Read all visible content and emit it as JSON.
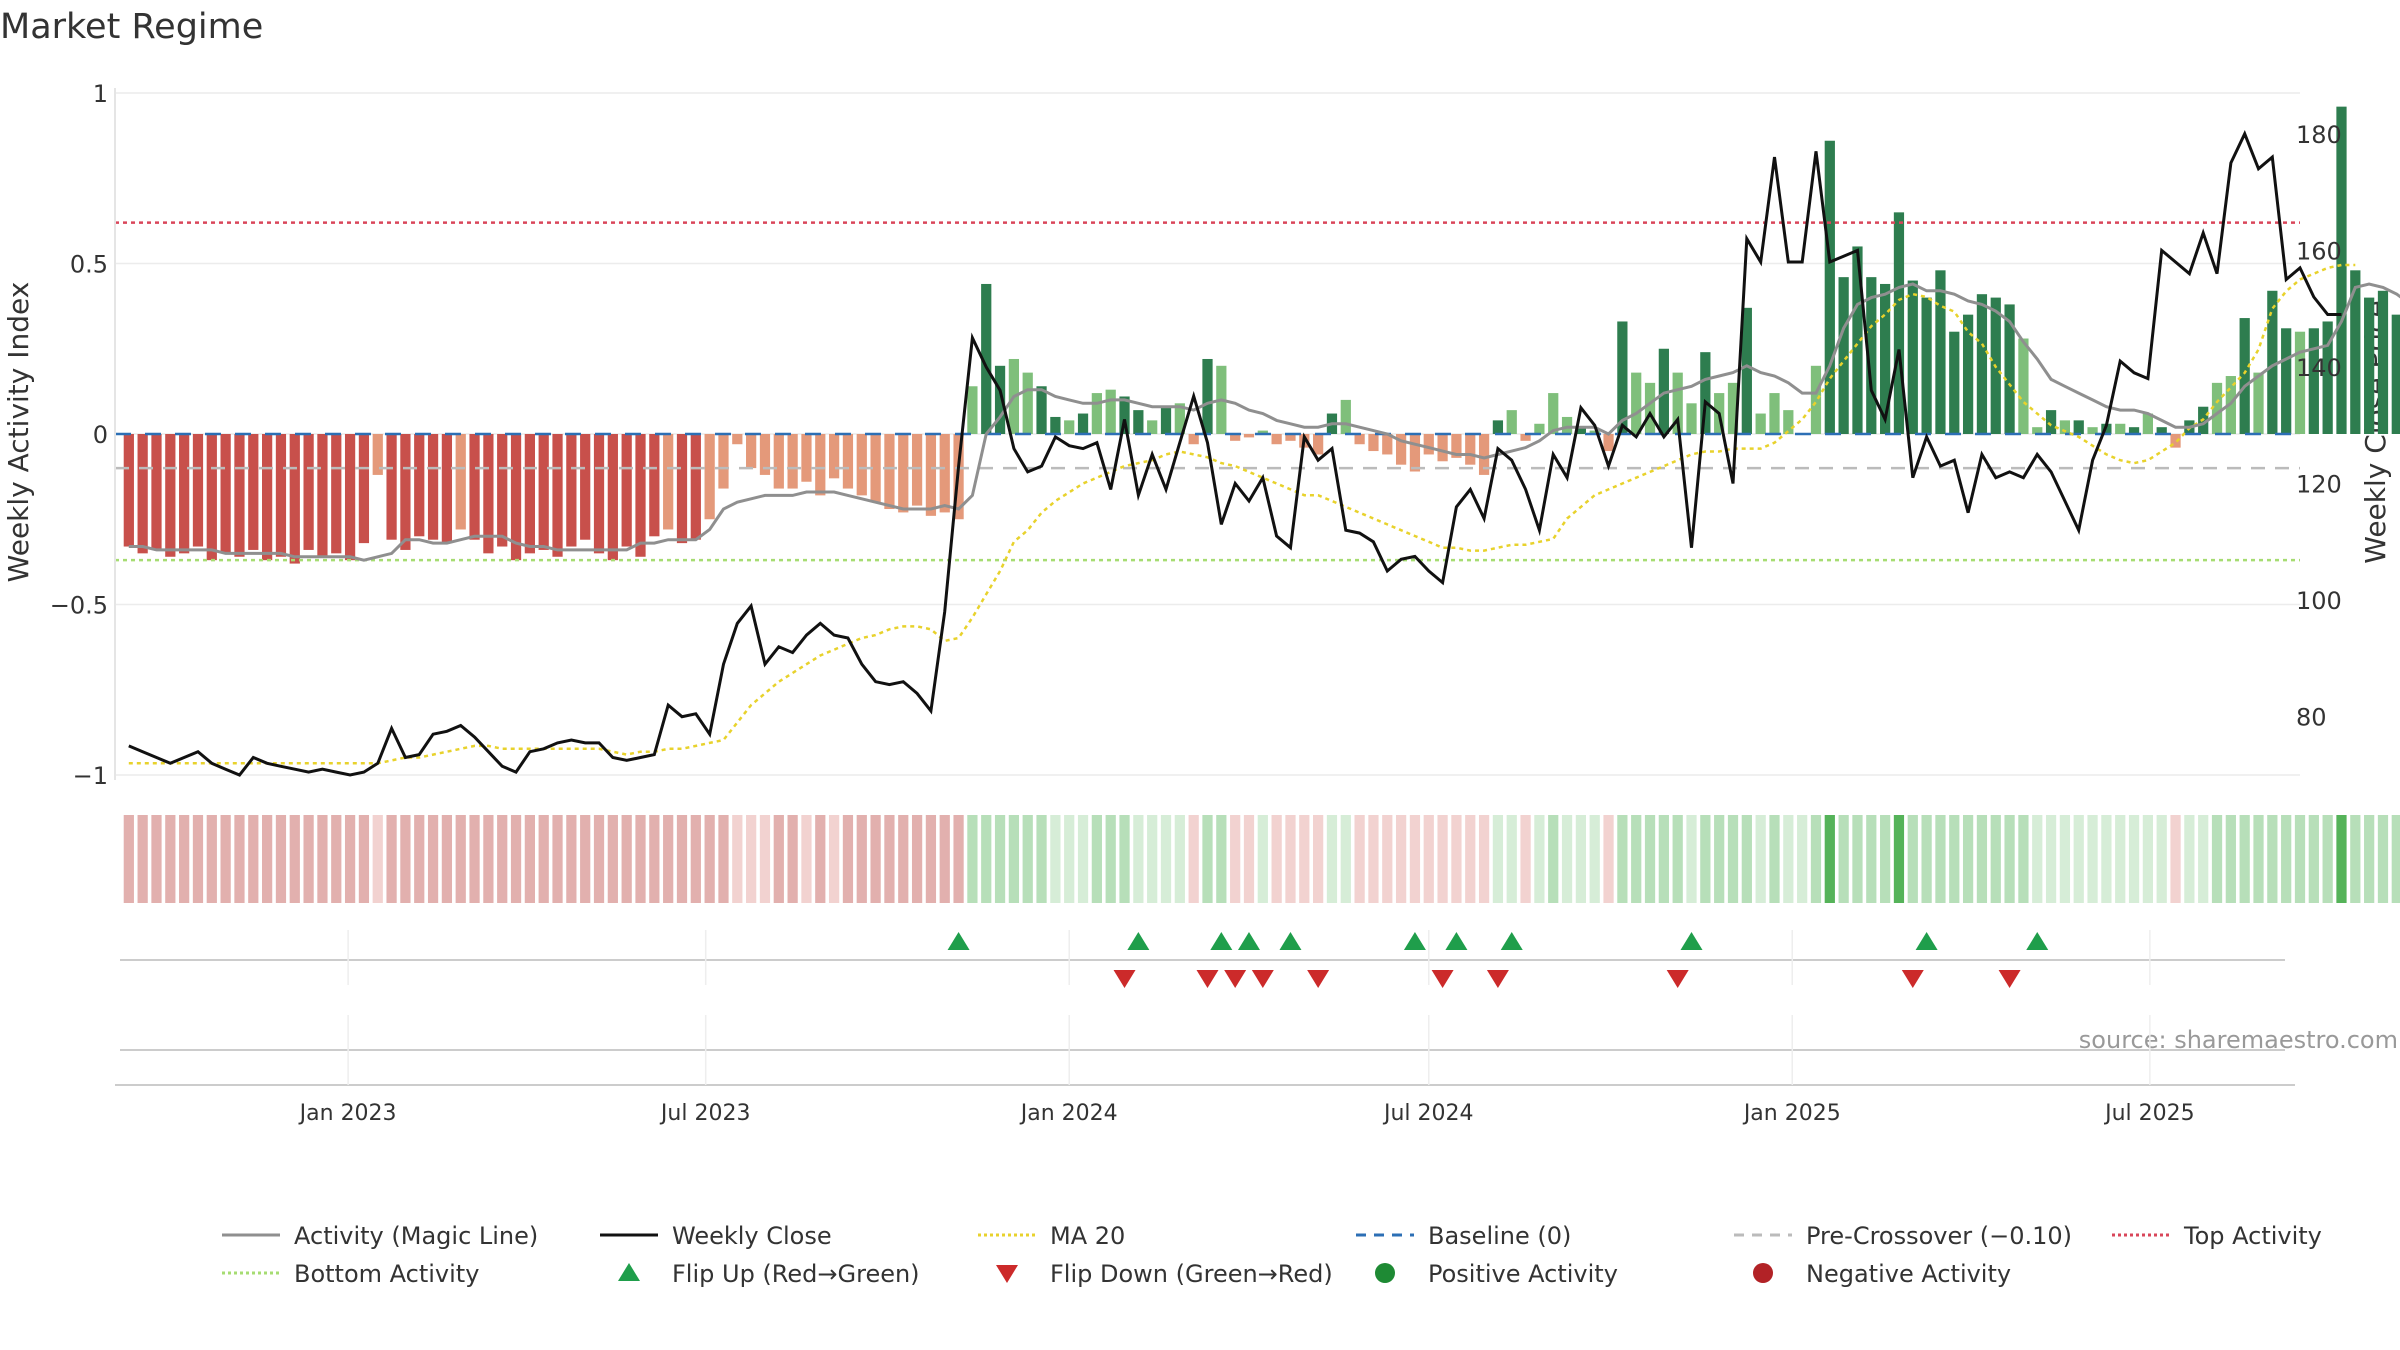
{
  "chart_data": {
    "type": "bar",
    "title": "Market Regime",
    "ylabel": "Weekly Activity Index",
    "y2label": "Weekly Close Price",
    "ylim": [
      -1.0,
      1.0
    ],
    "y2lim": [
      70,
      187
    ],
    "yticks": [
      "1",
      "0.5",
      "0",
      "−0.5",
      "−1"
    ],
    "y2ticks": [
      "180",
      "160",
      "140",
      "120",
      "100",
      "80"
    ],
    "x_range": [
      "2022-09-05",
      "2025-09-15"
    ],
    "x_ticks": [
      {
        "label": "Jan 2023",
        "date": "2023-01-01"
      },
      {
        "label": "Jul 2023",
        "date": "2023-07-01"
      },
      {
        "label": "Jan 2024",
        "date": "2024-01-01"
      },
      {
        "label": "Jul 2024",
        "date": "2024-07-01"
      },
      {
        "label": "Jan 2025",
        "date": "2025-01-01"
      },
      {
        "label": "Jul 2025",
        "date": "2025-07-01"
      }
    ],
    "grid": true,
    "legend_position": "bottom",
    "source": "source: sharemaestro.com",
    "first_week": "2022-09-12",
    "activity": [
      -0.33,
      -0.35,
      -0.34,
      -0.36,
      -0.35,
      -0.33,
      -0.37,
      -0.35,
      -0.36,
      -0.34,
      -0.37,
      -0.36,
      -0.38,
      -0.34,
      -0.36,
      -0.35,
      -0.37,
      -0.32,
      -0.12,
      -0.31,
      -0.34,
      -0.3,
      -0.31,
      -0.32,
      -0.28,
      -0.31,
      -0.35,
      -0.33,
      -0.37,
      -0.35,
      -0.34,
      -0.36,
      -0.33,
      -0.31,
      -0.35,
      -0.37,
      -0.33,
      -0.36,
      -0.3,
      -0.28,
      -0.32,
      -0.31,
      -0.25,
      -0.16,
      -0.03,
      -0.1,
      -0.12,
      -0.16,
      -0.16,
      -0.14,
      -0.18,
      -0.13,
      -0.16,
      -0.18,
      -0.2,
      -0.22,
      -0.23,
      -0.21,
      -0.24,
      -0.23,
      -0.25,
      0.14,
      0.44,
      0.2,
      0.22,
      0.18,
      0.14,
      0.05,
      0.04,
      0.06,
      0.12,
      0.13,
      0.11,
      0.07,
      0.04,
      0.08,
      0.09,
      -0.03,
      0.22,
      0.2,
      -0.02,
      -0.01,
      0.01,
      -0.03,
      -0.02,
      -0.04,
      -0.06,
      0.06,
      0.1,
      -0.03,
      -0.05,
      -0.06,
      -0.09,
      -0.11,
      -0.06,
      -0.08,
      -0.07,
      -0.09,
      -0.12,
      0.04,
      0.07,
      -0.02,
      0.03,
      0.12,
      0.05,
      0.02,
      0.01,
      -0.05,
      0.33,
      0.18,
      0.15,
      0.25,
      0.18,
      0.09,
      0.24,
      0.12,
      0.15,
      0.37,
      0.06,
      0.12,
      0.07,
      0.0,
      0.2,
      0.86,
      0.46,
      0.55,
      0.46,
      0.44,
      0.65,
      0.45,
      0.4,
      0.48,
      0.3,
      0.35,
      0.41,
      0.4,
      0.38,
      0.28,
      0.02,
      0.07,
      0.04,
      0.04,
      0.02,
      0.03,
      0.03,
      0.02,
      0.06,
      0.02,
      -0.04,
      0.04,
      0.08,
      0.15,
      0.17,
      0.34,
      0.18,
      0.42,
      0.31,
      0.3,
      0.31,
      0.33,
      0.96,
      0.48,
      0.4,
      0.42,
      0.35,
      0.3,
      0.26,
      0.23,
      0.23
    ],
    "magic_line": [
      -0.33,
      -0.33,
      -0.34,
      -0.34,
      -0.34,
      -0.34,
      -0.34,
      -0.35,
      -0.35,
      -0.35,
      -0.35,
      -0.35,
      -0.36,
      -0.36,
      -0.36,
      -0.36,
      -0.36,
      -0.37,
      -0.36,
      -0.35,
      -0.31,
      -0.31,
      -0.32,
      -0.32,
      -0.31,
      -0.3,
      -0.3,
      -0.3,
      -0.32,
      -0.33,
      -0.33,
      -0.34,
      -0.34,
      -0.34,
      -0.34,
      -0.34,
      -0.34,
      -0.32,
      -0.32,
      -0.31,
      -0.31,
      -0.31,
      -0.28,
      -0.22,
      -0.2,
      -0.19,
      -0.18,
      -0.18,
      -0.18,
      -0.17,
      -0.17,
      -0.17,
      -0.18,
      -0.19,
      -0.2,
      -0.21,
      -0.22,
      -0.22,
      -0.22,
      -0.21,
      -0.22,
      -0.18,
      0.0,
      0.05,
      0.11,
      0.13,
      0.13,
      0.11,
      0.1,
      0.09,
      0.09,
      0.1,
      0.1,
      0.09,
      0.08,
      0.08,
      0.08,
      0.07,
      0.09,
      0.1,
      0.09,
      0.07,
      0.06,
      0.04,
      0.03,
      0.02,
      0.02,
      0.03,
      0.03,
      0.02,
      0.01,
      0.0,
      -0.02,
      -0.03,
      -0.04,
      -0.05,
      -0.06,
      -0.06,
      -0.07,
      -0.06,
      -0.05,
      -0.04,
      -0.02,
      0.01,
      0.02,
      0.02,
      0.02,
      0.0,
      0.04,
      0.06,
      0.09,
      0.12,
      0.13,
      0.14,
      0.16,
      0.17,
      0.18,
      0.2,
      0.18,
      0.17,
      0.15,
      0.12,
      0.12,
      0.2,
      0.31,
      0.38,
      0.4,
      0.41,
      0.43,
      0.44,
      0.42,
      0.42,
      0.41,
      0.39,
      0.38,
      0.36,
      0.33,
      0.27,
      0.22,
      0.16,
      0.14,
      0.12,
      0.1,
      0.08,
      0.07,
      0.07,
      0.06,
      0.04,
      0.02,
      0.02,
      0.03,
      0.06,
      0.09,
      0.14,
      0.17,
      0.2,
      0.22,
      0.24,
      0.25,
      0.26,
      0.33,
      0.43,
      0.44,
      0.43,
      0.41,
      0.38,
      0.35,
      0.33,
      0.31
    ],
    "close": [
      75,
      74,
      73,
      72,
      73,
      74,
      72,
      71,
      70,
      73,
      72,
      71.5,
      71,
      70.5,
      71,
      70.5,
      70,
      70.5,
      72,
      78,
      73,
      73.5,
      77,
      77.5,
      78.5,
      76.5,
      74,
      71.5,
      70.5,
      74,
      74.5,
      75.5,
      76,
      75.5,
      75.5,
      73,
      72.5,
      73,
      73.5,
      82,
      80,
      80.5,
      77,
      89,
      96,
      99,
      89,
      92,
      91,
      94,
      96,
      94,
      93.5,
      89,
      86,
      85.5,
      86,
      84,
      81,
      98,
      123,
      145,
      140,
      136,
      126,
      122,
      123,
      128,
      126.5,
      126,
      127,
      119,
      131,
      118,
      125,
      119,
      127,
      135,
      127,
      113,
      120,
      117,
      121,
      111,
      109,
      128,
      124,
      126,
      112,
      111.5,
      110,
      105,
      107,
      107.5,
      105,
      103,
      116,
      119,
      114,
      126,
      124,
      119,
      112,
      125,
      121,
      133,
      130,
      123,
      130,
      128,
      132,
      128,
      131,
      109,
      134,
      132,
      120,
      162,
      158,
      176,
      158,
      158,
      177,
      158,
      159,
      160,
      136,
      131,
      143,
      121,
      128,
      123,
      124,
      115,
      125,
      121,
      122,
      121,
      125,
      122,
      117,
      112,
      124,
      130,
      141,
      139,
      138,
      160,
      158,
      156,
      163,
      156,
      175,
      180,
      174,
      176,
      155,
      157,
      152,
      149,
      149
    ],
    "ma20": [
      72,
      72,
      72,
      72,
      72,
      72,
      72,
      72,
      72,
      72,
      72,
      72,
      72,
      72,
      72,
      72,
      72,
      72,
      72,
      72.5,
      73,
      73,
      73.5,
      74,
      74.5,
      75,
      75,
      74.5,
      74.5,
      74.5,
      74.5,
      74.5,
      74.5,
      74.5,
      74.5,
      74,
      73.5,
      74,
      74,
      74.5,
      74.5,
      75,
      75.5,
      76,
      79,
      82,
      84,
      86,
      87.5,
      89,
      90.5,
      91.5,
      92.5,
      93.5,
      94,
      95,
      95.5,
      95.5,
      95,
      93,
      93.5,
      97,
      101,
      105,
      110,
      112,
      115,
      117,
      118.5,
      120,
      121,
      122,
      123,
      123.5,
      124,
      125,
      125.5,
      125,
      124.5,
      123.5,
      123,
      122,
      121,
      120,
      119,
      118,
      118,
      117,
      116,
      115,
      114,
      113,
      112,
      111,
      110,
      109,
      109,
      108.5,
      108.5,
      109,
      109.5,
      109.5,
      110,
      110.5,
      114,
      116,
      118,
      119,
      120,
      121,
      122,
      123,
      124,
      125,
      125.5,
      125.5,
      126,
      126,
      126,
      127,
      129,
      131,
      134,
      138,
      141,
      144,
      147,
      149,
      151.5,
      152.5,
      152,
      150.5,
      149.5,
      146,
      144,
      140,
      137,
      134,
      132,
      130,
      129,
      128,
      126.5,
      125,
      124,
      123.5,
      124,
      125.5,
      127,
      129.5,
      131,
      134,
      136.5,
      139,
      143,
      150,
      153,
      155,
      156,
      157,
      157.5,
      157.5
    ],
    "flips_up": [
      "2023-11-06",
      "2024-02-05",
      "2024-03-18",
      "2024-04-01",
      "2024-04-22",
      "2024-06-24",
      "2024-07-15",
      "2024-08-12",
      "2024-11-11",
      "2025-03-10",
      "2025-05-05"
    ],
    "flips_down": [
      "2024-01-29",
      "2024-03-11",
      "2024-03-25",
      "2024-04-08",
      "2024-05-06",
      "2024-07-08",
      "2024-08-05",
      "2024-11-04",
      "2025-03-03",
      "2025-04-21"
    ],
    "levels": {
      "top": 0.62,
      "bottom": -0.37,
      "pre_crossover": -0.1,
      "baseline": 0
    },
    "colors": {
      "neg_strong": "#c8504b",
      "neg_weak": "#e4997a",
      "pos_strong": "#2e7d4f",
      "pos_weak": "#7fbf7b",
      "close": "#111111",
      "magic": "#8f8f8f",
      "ma20": "#e8d22c",
      "baseline": "#2c6fb5",
      "pre_crossover": "#bbbbbb",
      "top": "#d9465a",
      "bottom": "#a6dc72",
      "flip_up": "#1f9e4b",
      "flip_down": "#cc2a2a"
    },
    "legend": [
      {
        "label": "Activity (Magic Line)",
        "kind": "line",
        "color": "#8f8f8f",
        "dash": ""
      },
      {
        "label": "Weekly Close",
        "kind": "line",
        "color": "#111111",
        "dash": ""
      },
      {
        "label": "MA 20",
        "kind": "line",
        "color": "#e8d22c",
        "dash": "3 3"
      },
      {
        "label": "Baseline (0)",
        "kind": "line",
        "color": "#2c6fb5",
        "dash": "10 8"
      },
      {
        "label": "Pre-Crossover (−0.10)",
        "kind": "line",
        "color": "#bbbbbb",
        "dash": "10 8"
      },
      {
        "label": "Top Activity",
        "kind": "line",
        "color": "#d9465a",
        "dash": "3 3"
      },
      {
        "label": "Bottom Activity",
        "kind": "line",
        "color": "#a6dc72",
        "dash": "3 3"
      },
      {
        "label": "Flip Up (Red→Green)",
        "kind": "tri-up",
        "color": "#1f9e4b"
      },
      {
        "label": "Flip Down (Green→Red)",
        "kind": "tri-down",
        "color": "#cc2a2a"
      },
      {
        "label": "Positive Activity",
        "kind": "dot",
        "color": "#1e8a34"
      },
      {
        "label": "Negative Activity",
        "kind": "dot",
        "color": "#b22226"
      }
    ]
  }
}
